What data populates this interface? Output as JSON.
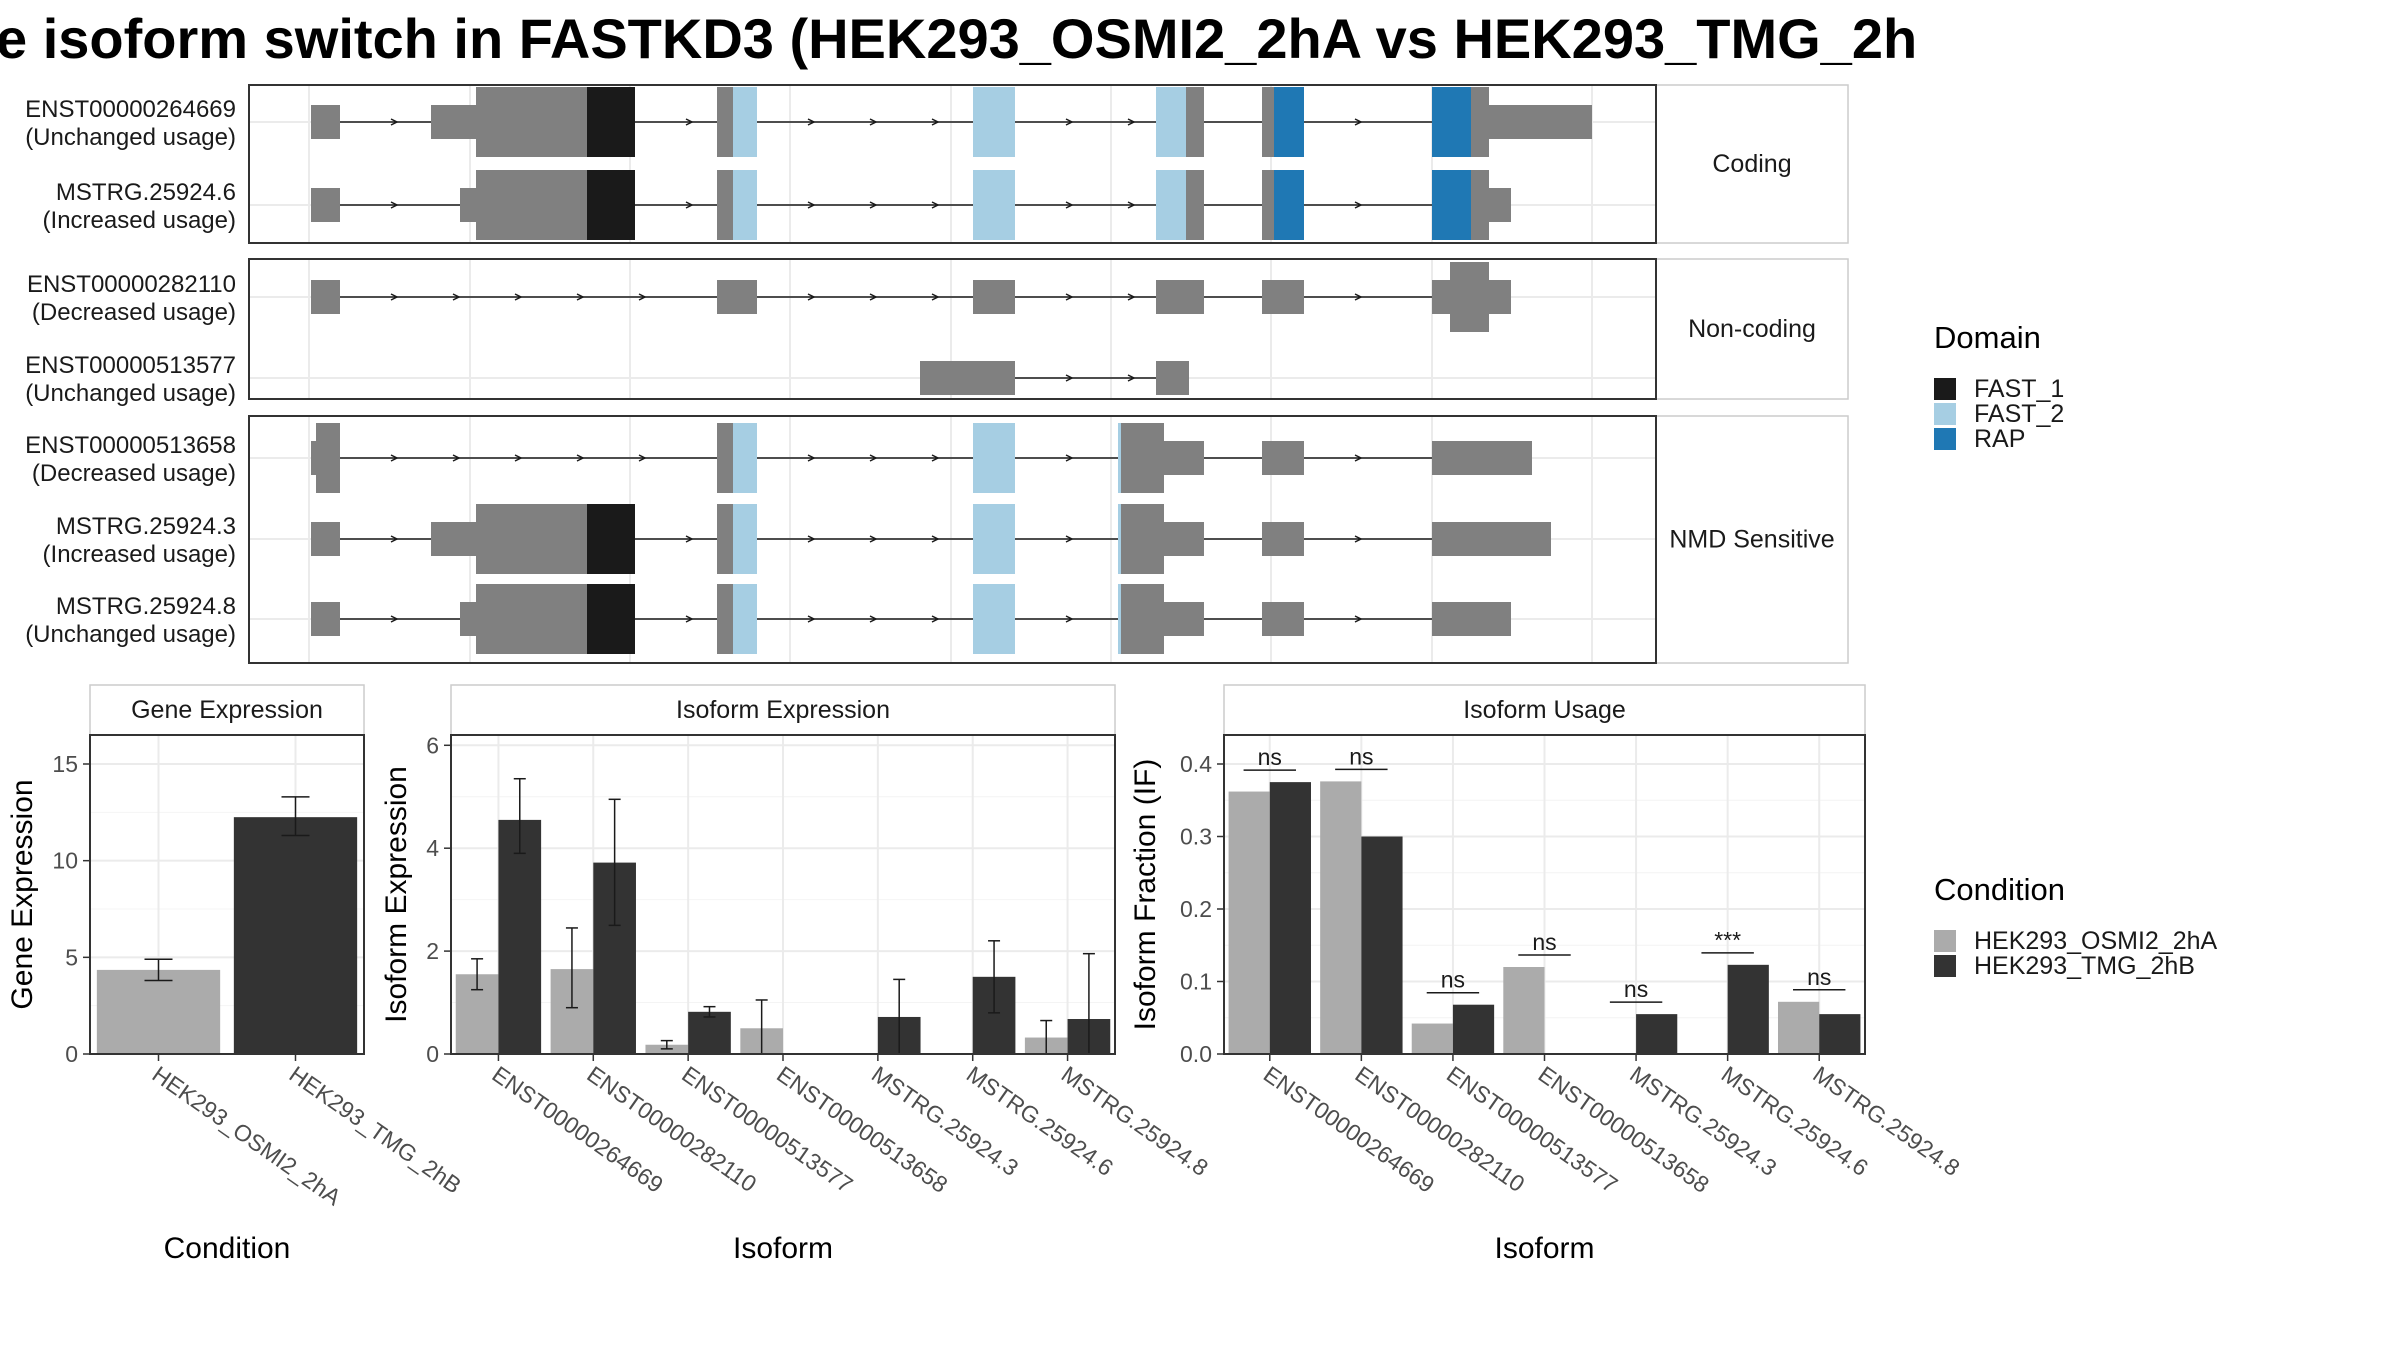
{
  "title": "e isoform switch in FASTKD3 (HEK293_OSMI2_2hA vs HEK293_TMG_2h",
  "colors": {
    "exon": "#808080",
    "intron": "#1a1a1a",
    "FAST_1": "#1a1a1a",
    "FAST_2": "#a6cee3",
    "RAP": "#1f78b4",
    "cond_a": "#ababab",
    "cond_b": "#333333",
    "panel_border": "#333333",
    "grid": "#ebebeb"
  },
  "domain_legend": {
    "title": "Domain",
    "items": [
      {
        "label": "FAST_1",
        "color": "#1a1a1a"
      },
      {
        "label": "FAST_2",
        "color": "#a6cee3"
      },
      {
        "label": "RAP",
        "color": "#1f78b4"
      }
    ]
  },
  "condition_legend": {
    "title": "Condition",
    "items": [
      {
        "label": "HEK293_OSMI2_2hA",
        "color": "#ababab"
      },
      {
        "label": "HEK293_TMG_2hB",
        "color": "#333333"
      }
    ]
  },
  "transcript_groups": [
    {
      "label": "Coding",
      "transcripts": [
        {
          "id": "ENST00000264669",
          "usage": "(Unchanged usage)"
        },
        {
          "id": "MSTRG.25924.6",
          "usage": "(Increased usage)"
        }
      ]
    },
    {
      "label": "Non-coding",
      "transcripts": [
        {
          "id": "ENST00000282110",
          "usage": "(Decreased usage)"
        },
        {
          "id": "ENST00000513577",
          "usage": "(Unchanged usage)"
        }
      ]
    },
    {
      "label": "NMD Sensitive",
      "transcripts": [
        {
          "id": "ENST00000513658",
          "usage": "(Decreased usage)"
        },
        {
          "id": "MSTRG.25924.3",
          "usage": "(Increased usage)"
        },
        {
          "id": "MSTRG.25924.8",
          "usage": "(Unchanged usage)"
        }
      ]
    }
  ],
  "chart_data": [
    {
      "type": "bar",
      "title": "Gene Expression",
      "xlabel": "Condition",
      "ylabel": "Gene Expression",
      "ylim": [
        0,
        16.5
      ],
      "yticks": [
        0,
        5,
        10,
        15
      ],
      "categories": [
        "HEK293_OSMI2_2hA",
        "HEK293_TMG_2hB"
      ],
      "values": [
        4.35,
        12.25
      ],
      "error_low": [
        3.8,
        11.3
      ],
      "error_high": [
        4.9,
        13.3
      ]
    },
    {
      "type": "bar",
      "title": "Isoform Expression",
      "xlabel": "Isoform",
      "ylabel": "Isoform Expression",
      "ylim": [
        0,
        6.2
      ],
      "yticks": [
        0,
        2,
        4,
        6
      ],
      "categories": [
        "ENST00000264669",
        "ENST00000282110",
        "ENST00000513577",
        "ENST00000513658",
        "MSTRG.25924.3",
        "MSTRG.25924.6",
        "MSTRG.25924.8"
      ],
      "series": [
        {
          "name": "HEK293_OSMI2_2hA",
          "values": [
            1.55,
            1.65,
            0.18,
            0.5,
            0,
            0,
            0.32
          ],
          "error_low": [
            1.25,
            0.9,
            0.1,
            0.0,
            0,
            0,
            0.0
          ],
          "error_high": [
            1.85,
            2.45,
            0.26,
            1.05,
            0,
            0,
            0.65
          ]
        },
        {
          "name": "HEK293_TMG_2hB",
          "values": [
            4.55,
            3.72,
            0.82,
            0,
            0.72,
            1.5,
            0.68
          ],
          "error_low": [
            3.9,
            2.5,
            0.72,
            0,
            0.0,
            0.8,
            0.0
          ],
          "error_high": [
            5.35,
            4.95,
            0.92,
            0,
            1.45,
            2.2,
            1.95
          ]
        }
      ]
    },
    {
      "type": "bar",
      "title": "Isoform Usage",
      "xlabel": "Isoform",
      "ylabel": "Isoform Fraction (IF)",
      "ylim": [
        0,
        0.44
      ],
      "yticks": [
        0.0,
        0.1,
        0.2,
        0.3,
        0.4
      ],
      "categories": [
        "ENST00000264669",
        "ENST00000282110",
        "ENST00000513577",
        "ENST00000513658",
        "MSTRG.25924.3",
        "MSTRG.25924.6",
        "MSTRG.25924.8"
      ],
      "series": [
        {
          "name": "HEK293_OSMI2_2hA",
          "values": [
            0.362,
            0.376,
            0.042,
            0.12,
            0,
            0,
            0.072
          ]
        },
        {
          "name": "HEK293_TMG_2hB",
          "values": [
            0.375,
            0.3,
            0.068,
            0,
            0.055,
            0.123,
            0.055
          ]
        }
      ],
      "significance": [
        "ns",
        "ns",
        "ns",
        "ns",
        "ns",
        "***",
        "ns"
      ]
    }
  ]
}
